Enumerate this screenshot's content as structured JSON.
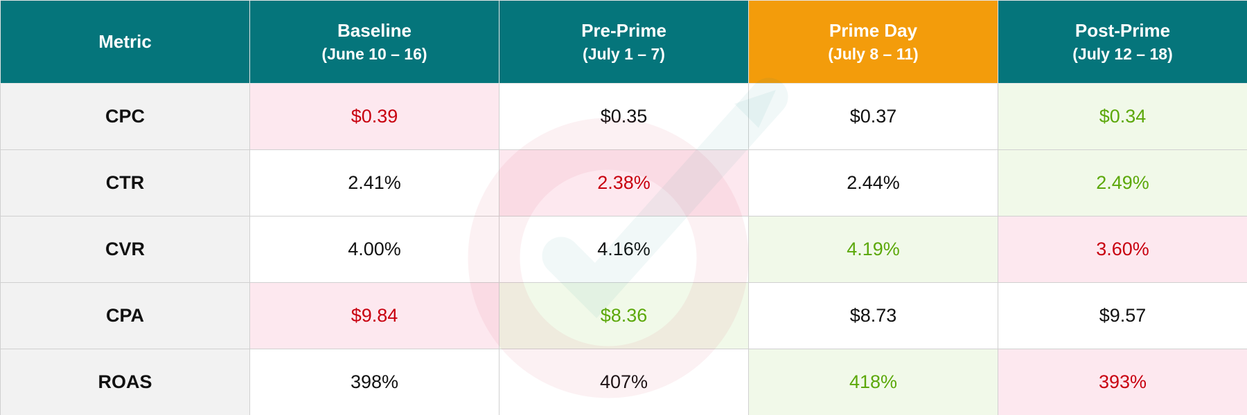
{
  "table": {
    "columns": [
      {
        "title": "Metric",
        "background": "#05757b"
      },
      {
        "title": "Baseline",
        "subtitle": "(June 10 – 16)",
        "background": "#05757b"
      },
      {
        "title": "Pre-Prime",
        "subtitle": "(July 1 – 7)",
        "background": "#05757b"
      },
      {
        "title": "Prime Day",
        "subtitle": "(July 8 – 11)",
        "background": "#f39c0b"
      },
      {
        "title": "Post-Prime",
        "subtitle": "(July 12 – 18)",
        "background": "#05757b"
      }
    ],
    "rows": [
      {
        "metric": "CPC",
        "cells": [
          {
            "text": "$0.39",
            "color": "#c8000f",
            "background": "#fde8ef"
          },
          {
            "text": "$0.35",
            "color": "#111111",
            "background": "#ffffff"
          },
          {
            "text": "$0.37",
            "color": "#111111",
            "background": "#ffffff"
          },
          {
            "text": "$0.34",
            "color": "#5ca80a",
            "background": "#f1f9e9"
          }
        ]
      },
      {
        "metric": "CTR",
        "cells": [
          {
            "text": "2.41%",
            "color": "#111111",
            "background": "#ffffff"
          },
          {
            "text": "2.38%",
            "color": "#c8000f",
            "background": "#fde8ef"
          },
          {
            "text": "2.44%",
            "color": "#111111",
            "background": "#ffffff"
          },
          {
            "text": "2.49%",
            "color": "#5ca80a",
            "background": "#f1f9e9"
          }
        ]
      },
      {
        "metric": "CVR",
        "cells": [
          {
            "text": "4.00%",
            "color": "#111111",
            "background": "#ffffff"
          },
          {
            "text": "4.16%",
            "color": "#111111",
            "background": "#ffffff"
          },
          {
            "text": "4.19%",
            "color": "#5ca80a",
            "background": "#f1f9e9"
          },
          {
            "text": "3.60%",
            "color": "#c8000f",
            "background": "#fde8ef"
          }
        ]
      },
      {
        "metric": "CPA",
        "cells": [
          {
            "text": "$9.84",
            "color": "#c8000f",
            "background": "#fde8ef"
          },
          {
            "text": "$8.36",
            "color": "#5ca80a",
            "background": "#f1f9e9"
          },
          {
            "text": "$8.73",
            "color": "#111111",
            "background": "#ffffff"
          },
          {
            "text": "$9.57",
            "color": "#111111",
            "background": "#ffffff"
          }
        ]
      },
      {
        "metric": "ROAS",
        "cells": [
          {
            "text": "398%",
            "color": "#111111",
            "background": "#ffffff"
          },
          {
            "text": "407%",
            "color": "#111111",
            "background": "#ffffff"
          },
          {
            "text": "418%",
            "color": "#5ca80a",
            "background": "#f1f9e9"
          },
          {
            "text": "393%",
            "color": "#c8000f",
            "background": "#fde8ef"
          }
        ]
      }
    ]
  }
}
